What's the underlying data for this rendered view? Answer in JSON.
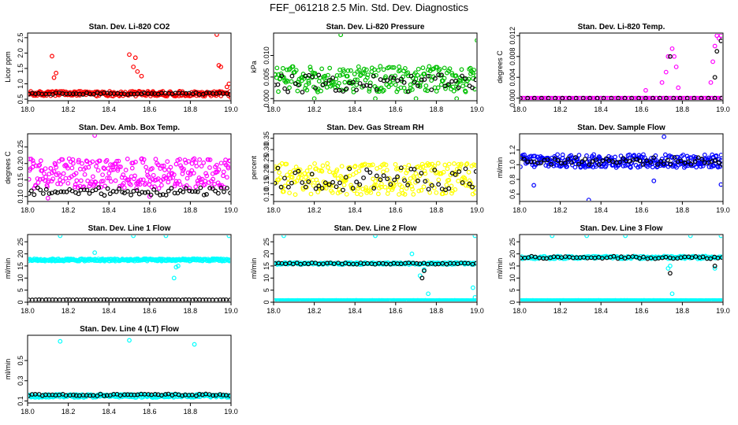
{
  "figure": {
    "title": "FEF_061218  2.5 Min. Std. Dev. Diagnostics"
  },
  "chart_data": [
    {
      "type": "scatter",
      "title": "Stan. Dev. Li-820 CO2",
      "xlabel": "",
      "ylabel": "Licor ppm",
      "xlim": [
        18.0,
        19.0
      ],
      "ylim": [
        0.45,
        2.65
      ],
      "xticks": [
        "18.0",
        "18.2",
        "18.4",
        "18.6",
        "18.8",
        "19.0"
      ],
      "yticks": [
        "0.5",
        "1.0",
        "1.5",
        "2.0",
        "2.5"
      ],
      "series": [
        {
          "color": "#ff0000",
          "base": 0.68,
          "noise": 0.08,
          "n": 260,
          "extra": [
            [
              18.12,
              1.9
            ],
            [
              18.14,
              1.35
            ],
            [
              18.13,
              1.2
            ],
            [
              18.5,
              1.95
            ],
            [
              18.52,
              1.55
            ],
            [
              18.54,
              1.4
            ],
            [
              18.56,
              1.25
            ],
            [
              18.53,
              1.85
            ],
            [
              18.93,
              2.6
            ],
            [
              18.94,
              1.6
            ],
            [
              18.95,
              1.55
            ],
            [
              18.98,
              0.9
            ],
            [
              18.99,
              1.0
            ],
            [
              19.0,
              0.55
            ]
          ]
        },
        {
          "color": "#000000",
          "base": 0.68,
          "noise": 0.03,
          "n": 60,
          "extra": []
        }
      ]
    },
    {
      "type": "scatter",
      "title": "Stan. Dev. Li-820 Pressure",
      "xlabel": "",
      "ylabel": "kPa",
      "xlim": [
        18.0,
        19.0
      ],
      "ylim": [
        -0.0005,
        0.0152
      ],
      "xticks": [
        "18.0",
        "18.2",
        "18.4",
        "18.6",
        "18.8",
        "19.0"
      ],
      "yticks": [
        "0.000",
        "0.005",
        "0.010"
      ],
      "series": [
        {
          "color": "#00c000",
          "base": 0.0045,
          "noise": 0.003,
          "n": 240,
          "extra": [
            [
              18.33,
              0.0148
            ],
            [
              19.0,
              0.0135
            ],
            [
              18.5,
              0.0
            ],
            [
              18.2,
              0.0
            ],
            [
              18.7,
              0.0
            ],
            [
              18.9,
              0.0
            ]
          ]
        },
        {
          "color": "#000000",
          "base": 0.0035,
          "noise": 0.002,
          "n": 60,
          "extra": []
        }
      ]
    },
    {
      "type": "scatter",
      "title": "Stan. Dev. Li-820 Temp.",
      "xlabel": "",
      "ylabel": "degrees C",
      "xlim": [
        18.0,
        19.0
      ],
      "ylim": [
        -0.0005,
        0.0125
      ],
      "xticks": [
        "18.0",
        "18.2",
        "18.4",
        "18.6",
        "18.8",
        "19.0"
      ],
      "yticks": [
        "0.000",
        "0.004",
        "0.008",
        "0.012"
      ],
      "series": [
        {
          "color": "#ff00ff",
          "base": 0.0,
          "noise": 0.0,
          "n": 110,
          "extra": [
            [
              18.62,
              0.0015
            ],
            [
              18.7,
              0.003
            ],
            [
              18.72,
              0.005
            ],
            [
              18.73,
              0.008
            ],
            [
              18.75,
              0.0095
            ],
            [
              18.76,
              0.008
            ],
            [
              18.77,
              0.006
            ],
            [
              18.78,
              0.002
            ],
            [
              18.94,
              0.003
            ],
            [
              18.95,
              0.007
            ],
            [
              18.96,
              0.01
            ],
            [
              18.97,
              0.012
            ],
            [
              18.98,
              0.0115
            ],
            [
              18.99,
              0.012
            ]
          ]
        },
        {
          "color": "#000000",
          "base": 0.0,
          "noise": 0.0,
          "n": 30,
          "extra": [
            [
              18.74,
              0.008
            ],
            [
              18.96,
              0.004
            ],
            [
              18.97,
              0.009
            ],
            [
              18.99,
              0.011
            ]
          ]
        }
      ]
    },
    {
      "type": "scatter",
      "title": "Stan. Dev. Amb. Box Temp.",
      "xlabel": "",
      "ylabel": "degrees C",
      "xlim": [
        18.0,
        19.0
      ],
      "ylim": [
        0.085,
        0.29
      ],
      "xticks": [
        "18.0",
        "18.2",
        "18.4",
        "18.6",
        "18.8",
        "19.0"
      ],
      "yticks": [
        "0.10",
        "0.15",
        "0.20",
        "0.25"
      ],
      "series": [
        {
          "color": "#ff00ff",
          "base": 0.17,
          "noise": 0.045,
          "n": 280,
          "extra": [
            [
              18.33,
              0.285
            ],
            [
              18.1,
              0.095
            ],
            [
              18.6,
              0.1
            ]
          ]
        },
        {
          "color": "#000000",
          "base": 0.115,
          "noise": 0.012,
          "n": 70,
          "extra": []
        }
      ]
    },
    {
      "type": "scatter",
      "title": "Stan. Dev. Gas Stream RH",
      "xlabel": "",
      "ylabel": "percent",
      "xlim": [
        18.0,
        19.0
      ],
      "ylim": [
        0.07,
        0.37
      ],
      "xticks": [
        "18.0",
        "18.2",
        "18.4",
        "18.6",
        "18.8",
        "19.0"
      ],
      "yticks": [
        "0.10",
        "0.15",
        "0.20",
        "0.25",
        "0.30",
        "0.35"
      ],
      "series": [
        {
          "color": "#ffff00",
          "base": 0.17,
          "noise": 0.07,
          "n": 260,
          "extra": []
        },
        {
          "color": "#000000",
          "base": 0.17,
          "noise": 0.05,
          "n": 60,
          "extra": []
        }
      ]
    },
    {
      "type": "scatter",
      "title": "Stan. Dev. Sample Flow",
      "xlabel": "",
      "ylabel": "ml/min",
      "xlim": [
        18.0,
        19.0
      ],
      "ylim": [
        0.5,
        1.42
      ],
      "xticks": [
        "18.0",
        "18.2",
        "18.4",
        "18.6",
        "18.8",
        "19.0"
      ],
      "yticks": [
        "0.6",
        "0.8",
        "1.0",
        "1.2"
      ],
      "series": [
        {
          "color": "#0000ff",
          "base": 1.05,
          "noise": 0.09,
          "n": 300,
          "extra": [
            [
              18.34,
              0.52
            ],
            [
              18.66,
              0.78
            ],
            [
              18.71,
              1.38
            ],
            [
              18.07,
              0.72
            ],
            [
              18.99,
              0.73
            ]
          ]
        },
        {
          "color": "#000000",
          "base": 1.05,
          "noise": 0.05,
          "n": 60,
          "extra": []
        }
      ]
    },
    {
      "type": "scatter",
      "title": "Stan. Dev. Line 1 Flow",
      "xlabel": "",
      "ylabel": "ml/min",
      "xlim": [
        18.0,
        19.0
      ],
      "ylim": [
        0,
        28
      ],
      "xticks": [
        "18.0",
        "18.2",
        "18.4",
        "18.6",
        "18.8",
        "19.0"
      ],
      "yticks": [
        "0",
        "5",
        "10",
        "15",
        "20",
        "25"
      ],
      "series": [
        {
          "color": "#00ffff",
          "base": 17.5,
          "noise": 0.5,
          "n": 300,
          "extra": [
            [
              18.16,
              27.5
            ],
            [
              18.33,
              20.5
            ],
            [
              18.52,
              27.5
            ],
            [
              18.68,
              27.5
            ],
            [
              18.72,
              10
            ],
            [
              18.73,
              14.5
            ],
            [
              18.74,
              15
            ],
            [
              18.99,
              27.5
            ]
          ]
        },
        {
          "color": "#000000",
          "base": 1.0,
          "noise": 0.05,
          "n": 60,
          "extra": []
        }
      ]
    },
    {
      "type": "scatter",
      "title": "Stan. Dev. Line 2 Flow",
      "xlabel": "",
      "ylabel": "ml/min",
      "xlim": [
        18.0,
        19.0
      ],
      "ylim": [
        0,
        28
      ],
      "xticks": [
        "18.0",
        "18.2",
        "18.4",
        "18.6",
        "18.8",
        "19.0"
      ],
      "yticks": [
        "0",
        "5",
        "10",
        "15",
        "20",
        "25"
      ],
      "series": [
        {
          "color": "#00ffff",
          "base": 0.7,
          "noise": 0.05,
          "n": 300,
          "extra": [
            [
              18.05,
              27.5
            ],
            [
              18.5,
              27.5
            ],
            [
              18.68,
              20
            ],
            [
              18.72,
              11
            ],
            [
              18.74,
              13.5
            ],
            [
              18.76,
              3.5
            ],
            [
              18.98,
              6
            ],
            [
              18.99,
              27.5
            ],
            [
              18.99,
              2
            ]
          ]
        },
        {
          "color": "#00ffff",
          "base": 16.0,
          "noise": 0.4,
          "n": 200,
          "extra": []
        },
        {
          "color": "#000000",
          "base": 16.0,
          "noise": 0.3,
          "n": 55,
          "extra": [
            [
              18.73,
              10
            ],
            [
              18.74,
              13
            ]
          ]
        }
      ]
    },
    {
      "type": "scatter",
      "title": "Stan. Dev. Line 3 Flow",
      "xlabel": "",
      "ylabel": "ml/min",
      "xlim": [
        18.0,
        19.0
      ],
      "ylim": [
        0,
        28
      ],
      "xticks": [
        "18.0",
        "18.2",
        "18.4",
        "18.6",
        "18.8",
        "19.0"
      ],
      "yticks": [
        "0",
        "5",
        "10",
        "15",
        "20",
        "25"
      ],
      "series": [
        {
          "color": "#00ffff",
          "base": 0.7,
          "noise": 0.05,
          "n": 300,
          "extra": [
            [
              18.16,
              27.5
            ],
            [
              18.33,
              27.5
            ],
            [
              18.52,
              27.5
            ],
            [
              18.75,
              3.5
            ],
            [
              18.84,
              27.5
            ],
            [
              18.99,
              27.5
            ]
          ]
        },
        {
          "color": "#00ffff",
          "base": 18.5,
          "noise": 0.6,
          "n": 200,
          "extra": [
            [
              18.73,
              14
            ],
            [
              18.74,
              15
            ],
            [
              18.96,
              14
            ]
          ]
        },
        {
          "color": "#000000",
          "base": 18.5,
          "noise": 0.5,
          "n": 55,
          "extra": [
            [
              18.74,
              12
            ],
            [
              18.96,
              15
            ]
          ]
        }
      ]
    },
    {
      "type": "scatter",
      "title": "Stan. Dev. Line 4 (LT) Flow",
      "xlabel": "",
      "ylabel": "ml/min",
      "xlim": [
        18.0,
        19.0
      ],
      "ylim": [
        0.08,
        0.75
      ],
      "xticks": [
        "18.0",
        "18.2",
        "18.4",
        "18.6",
        "18.8",
        "19.0"
      ],
      "yticks": [
        "0.1",
        "0.3",
        "0.5"
      ],
      "series": [
        {
          "color": "#00ffff",
          "base": 0.15,
          "noise": 0.015,
          "n": 300,
          "extra": [
            [
              18.16,
              0.69
            ],
            [
              18.5,
              0.7
            ],
            [
              18.82,
              0.66
            ]
          ]
        },
        {
          "color": "#000000",
          "base": 0.16,
          "noise": 0.01,
          "n": 60,
          "extra": []
        }
      ]
    }
  ]
}
